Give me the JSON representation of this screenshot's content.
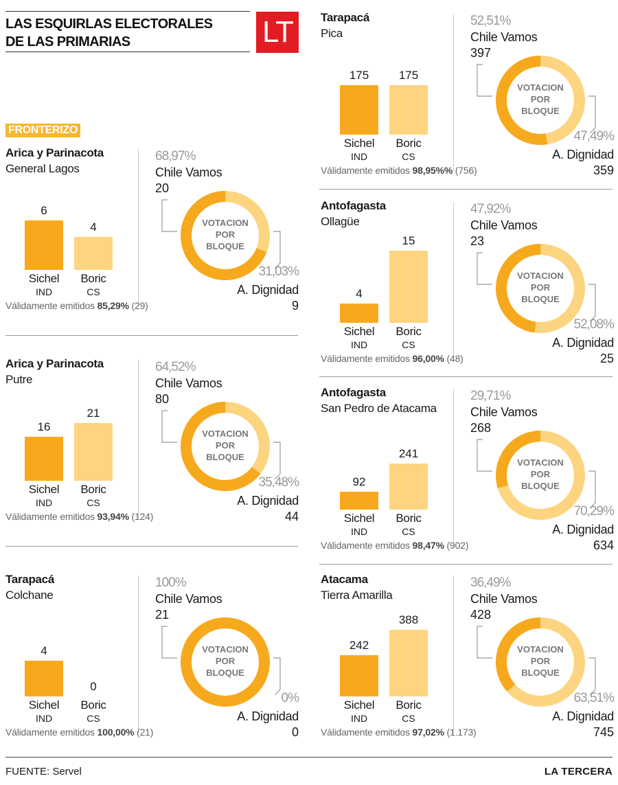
{
  "header": {
    "title_line1": "LAS ESQUIRLAS ELECTORALES",
    "title_line2": "DE LAS PRIMARIAS",
    "logo_text": "LT"
  },
  "section_label": "FRONTERIZO",
  "donut_label": [
    "VOTACION",
    "POR",
    "BLOQUE"
  ],
  "labels": {
    "sichel": "Sichel",
    "sichel_party": "IND",
    "boric": "Boric",
    "boric_party": "CS",
    "chile_vamos": "Chile Vamos",
    "a_dignidad": "A. Dignidad",
    "valid_prefix": "Válidamente emitidos "
  },
  "colors": {
    "sichel": "#f7a91d",
    "boric": "#fdd47f",
    "chile_vamos": "#f7a91d",
    "a_dignidad": "#fdd47f",
    "logo": "#e31b23",
    "section": "#f7b731"
  },
  "chart_data": [
    {
      "type": "bar+donut",
      "region": "Arica y Parinacota",
      "commune": "General Lagos",
      "categories": [
        "Sichel",
        "Boric"
      ],
      "values": [
        6,
        4
      ],
      "cv_pct": "68,97%",
      "cv_votes": 20,
      "ad_pct": "31,03%",
      "ad_votes": 9,
      "valid_pct": "85,29%",
      "valid_total": "(29)"
    },
    {
      "type": "bar+donut",
      "region": "Arica y Parinacota",
      "commune": "Putre",
      "categories": [
        "Sichel",
        "Boric"
      ],
      "values": [
        16,
        21
      ],
      "cv_pct": "64,52%",
      "cv_votes": 80,
      "ad_pct": "35,48%",
      "ad_votes": 44,
      "valid_pct": "93,94%",
      "valid_total": "(124)"
    },
    {
      "type": "bar+donut",
      "region": "Tarapacá",
      "commune": "Colchane",
      "categories": [
        "Sichel",
        "Boric"
      ],
      "values": [
        4,
        0
      ],
      "cv_pct": "100%",
      "cv_votes": 21,
      "ad_pct": "0%",
      "ad_votes": 0,
      "valid_pct": "100,00%",
      "valid_total": "(21)"
    },
    {
      "type": "bar+donut",
      "region": "Tarapacá",
      "commune": "Pica",
      "categories": [
        "Sichel",
        "Boric"
      ],
      "values": [
        175,
        175
      ],
      "cv_pct": "52,51%",
      "cv_votes": 397,
      "ad_pct": "47,49%",
      "ad_votes": 359,
      "valid_pct": "98,95%%",
      "valid_total": "(756)"
    },
    {
      "type": "bar+donut",
      "region": "Antofagasta",
      "commune": "Ollagüe",
      "categories": [
        "Sichel",
        "Boric"
      ],
      "values": [
        4,
        15
      ],
      "cv_pct": "47,92%",
      "cv_votes": 23,
      "ad_pct": "52,08%",
      "ad_votes": 25,
      "valid_pct": "96,00%",
      "valid_total": "(48)"
    },
    {
      "type": "bar+donut",
      "region": "Antofagasta",
      "commune": "San Pedro de Atacama",
      "categories": [
        "Sichel",
        "Boric"
      ],
      "values": [
        92,
        241
      ],
      "cv_pct": "29,71%",
      "cv_votes": 268,
      "ad_pct": "70,29%",
      "ad_votes": 634,
      "valid_pct": "98,47%",
      "valid_total": "(902)"
    },
    {
      "type": "bar+donut",
      "region": "Atacama",
      "commune": "Tierra Amarilla",
      "categories": [
        "Sichel",
        "Boric"
      ],
      "values": [
        242,
        388
      ],
      "cv_pct": "36,49%",
      "cv_votes": 428,
      "ad_pct": "63,51%",
      "ad_votes": 745,
      "valid_pct": "97,02%",
      "valid_total": "(1.173)"
    }
  ],
  "footer": {
    "source": "FUENTE: Servel",
    "brand": "LA TERCERA"
  }
}
